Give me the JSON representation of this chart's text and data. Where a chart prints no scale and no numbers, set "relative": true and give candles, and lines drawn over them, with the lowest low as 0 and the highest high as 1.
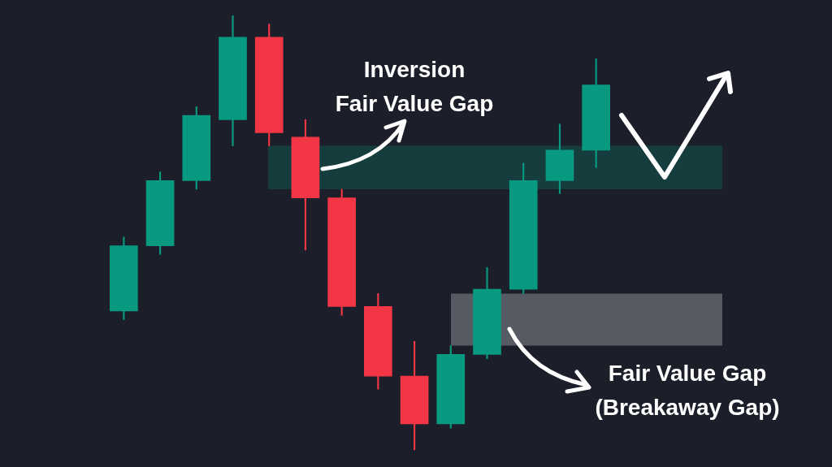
{
  "chart_data": {
    "type": "candlestick",
    "categories": [
      null,
      null,
      null,
      null,
      null,
      null,
      null,
      null,
      null,
      null,
      null,
      null,
      null,
      null
    ],
    "ohlc": [
      [
        0.32,
        0.49,
        0.3,
        0.47
      ],
      [
        0.47,
        0.64,
        0.45,
        0.62
      ],
      [
        0.62,
        0.79,
        0.6,
        0.77
      ],
      [
        0.76,
        1,
        0.7,
        0.95
      ],
      [
        0.95,
        0.98,
        0.7,
        0.73
      ],
      [
        0.72,
        0.76,
        0.46,
        0.58
      ],
      [
        0.58,
        0.6,
        0.31,
        0.33
      ],
      [
        0.33,
        0.36,
        0.14,
        0.17
      ],
      [
        0.17,
        0.25,
        0,
        0.06
      ],
      [
        0.06,
        0.24,
        0.05,
        0.22
      ],
      [
        0.22,
        0.42,
        0.21,
        0.37
      ],
      [
        0.37,
        0.66,
        0.36,
        0.62
      ],
      [
        0.62,
        0.75,
        0.59,
        0.69
      ],
      [
        0.69,
        0.9,
        0.65,
        0.84
      ]
    ],
    "colors": [
      "#089981",
      "#089981",
      "#089981",
      "#089981",
      "#f23645",
      "#f23645",
      "#f23645",
      "#f23645",
      "#f23645",
      "#089981",
      "#089981",
      "#089981",
      "#089981",
      "#089981"
    ],
    "relative": true,
    "tick_labels": false,
    "bands": [
      {
        "axis": "y",
        "from": 0.6,
        "to": 0.7,
        "label": "Inversion\nFair Value Gap",
        "color": "#163d3e"
      },
      {
        "axis": "y",
        "from": 0.24,
        "to": 0.36,
        "label": "Fair Value Gap\n(Breakaway Gap)",
        "color": "#565a63"
      }
    ]
  }
}
